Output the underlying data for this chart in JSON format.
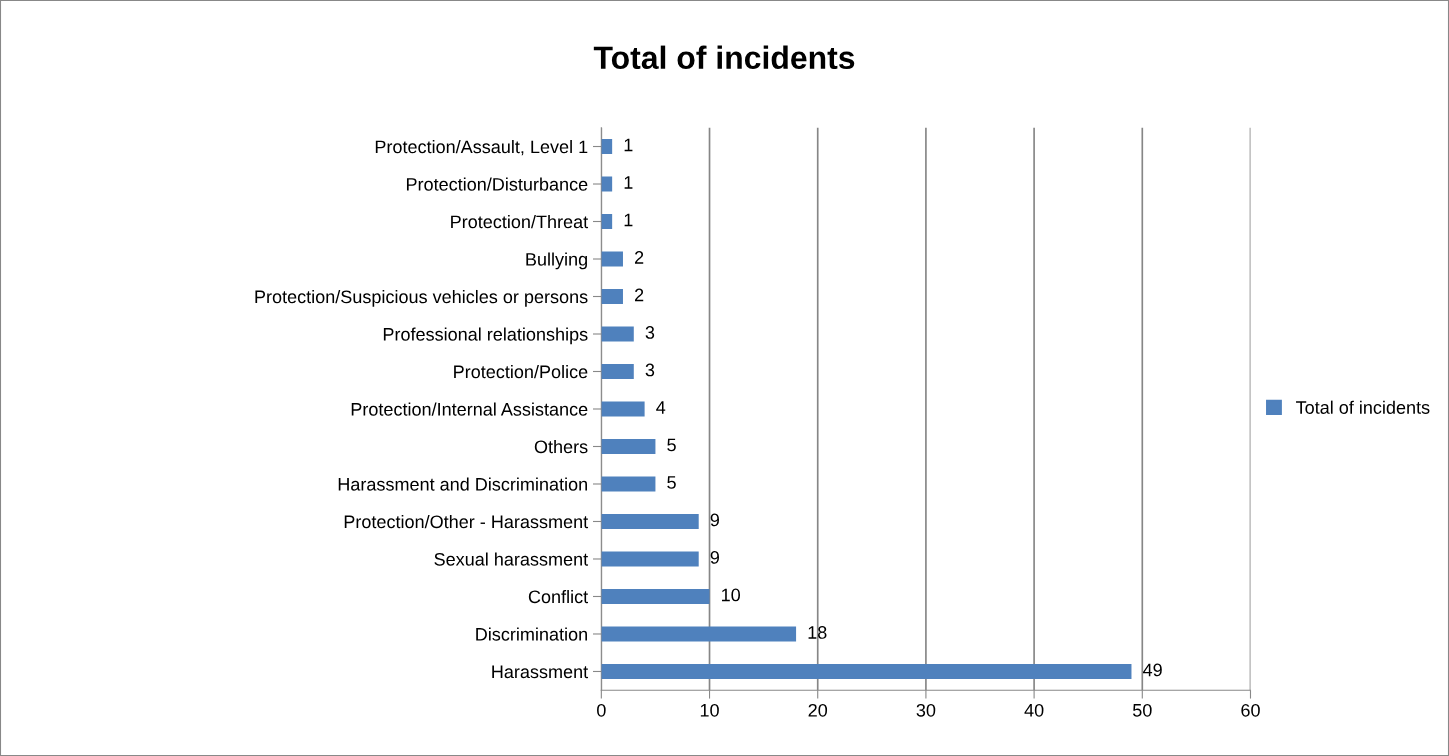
{
  "chart_data": {
    "type": "bar",
    "orientation": "horizontal",
    "title": "Total of incidents",
    "categories": [
      "Protection/Assault, Level 1",
      "Protection/Disturbance",
      "Protection/Threat",
      "Bullying",
      "Protection/Suspicious vehicles or persons",
      "Professional relationships",
      "Protection/Police",
      "Protection/Internal Assistance",
      "Others",
      "Harassment and Discrimination",
      "Protection/Other - Harassment",
      "Sexual harassment",
      "Conflict",
      "Discrimination",
      "Harassment"
    ],
    "series": [
      {
        "name": "Total of incidents",
        "color": "#4f81bd",
        "values": [
          1,
          1,
          1,
          2,
          2,
          3,
          3,
          4,
          5,
          5,
          9,
          9,
          10,
          18,
          49
        ]
      }
    ],
    "xlim": [
      0,
      60
    ],
    "xticks": [
      0,
      10,
      20,
      30,
      40,
      50,
      60
    ],
    "grid": "x",
    "legend": "right",
    "data_labels": true
  }
}
